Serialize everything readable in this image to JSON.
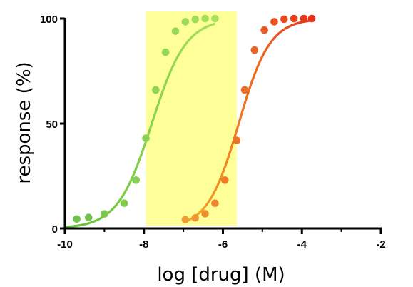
{
  "chart_data": {
    "type": "scatter",
    "title": "",
    "xlabel": "log [drug] (M)",
    "ylabel": "response (%)",
    "xlim": [
      -10,
      -2
    ],
    "ylim": [
      0,
      100
    ],
    "x_ticks": [
      -10,
      -8,
      -6,
      -4,
      -2
    ],
    "x_tick_labels": [
      "-10",
      "-8",
      "-6",
      "-4",
      "-2"
    ],
    "y_ticks": [
      0,
      50,
      100
    ],
    "y_tick_labels": [
      "0",
      "50",
      "100"
    ],
    "grid": false,
    "legend": "none",
    "highlight_band": {
      "x_from": -7.95,
      "x_to": -5.65,
      "color": "#ffff99"
    },
    "series": [
      {
        "color_points": [
          "#6cc24a",
          "#a8e05a"
        ],
        "color_line": [
          "#5fbf3a",
          "#a8e05a"
        ],
        "fit": {
          "model": "hill",
          "ec50_log": -7.8,
          "hill": 1.0,
          "bottom": 0,
          "top": 100,
          "x_range": [
            -10,
            -6.2
          ]
        },
        "x": [
          -9.7,
          -9.4,
          -9.0,
          -8.5,
          -8.2,
          -7.95,
          -7.7,
          -7.45,
          -7.2,
          -6.95,
          -6.7,
          -6.45,
          -6.2
        ],
        "y": [
          4.5,
          5.2,
          6.9,
          12,
          23,
          43,
          66,
          84,
          94,
          98.5,
          99.6,
          100,
          100
        ]
      },
      {
        "color_points": [
          "#f0a030",
          "#e4311a"
        ],
        "color_line": [
          "#f5b325",
          "#e5301a"
        ],
        "fit": {
          "model": "hill",
          "ec50_log": -5.6,
          "hill": 1.1,
          "bottom": 0,
          "top": 100,
          "x_range": [
            -7.0,
            -3.75
          ]
        },
        "x": [
          -6.95,
          -6.7,
          -6.45,
          -6.2,
          -5.95,
          -5.65,
          -5.45,
          -5.2,
          -4.95,
          -4.7,
          -4.45,
          -4.2,
          -3.95,
          -3.75
        ],
        "y": [
          4.2,
          5,
          7,
          12,
          23,
          42,
          66,
          85,
          94.5,
          98.5,
          99.7,
          100,
          100,
          100
        ]
      }
    ]
  }
}
